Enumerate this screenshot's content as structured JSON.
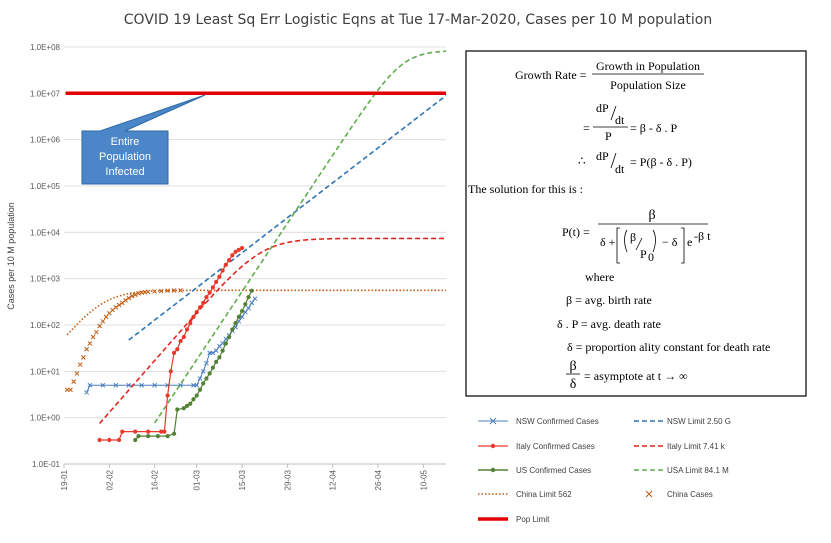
{
  "chart_data": {
    "type": "line",
    "title": "COVID 19 Least Sq Err Logistic Eqns at Tue 17-Mar-2020,  Cases per 10 M population",
    "ylabel": "Cases per 10 M population",
    "xlabel": "",
    "y_scale": "log",
    "ylim": [
      0.1,
      100000000
    ],
    "y_tick_labels": [
      "1.0E-01",
      "1.0E+00",
      "1.0E+01",
      "1.0E+02",
      "1.0E+03",
      "1.0E+04",
      "1.0E+05",
      "1.0E+06",
      "1.0E+07",
      "1.0E+08"
    ],
    "xlim": [
      "19-01",
      "17-05"
    ],
    "x_tick_labels": [
      "19-01",
      "02-02",
      "16-02",
      "01-03",
      "15-03",
      "29-03",
      "12-04",
      "26-04",
      "10-05"
    ],
    "x_tick_days": [
      0,
      14,
      28,
      41,
      55,
      69,
      83,
      97,
      111
    ],
    "x_max_day": 118,
    "annotation": {
      "text": [
        "Entire",
        "Population",
        "Infected"
      ],
      "fill": "#4a86c8",
      "stroke": "#2e6aa6"
    },
    "series": [
      {
        "name": "NSW Confirmed Cases",
        "color": "#4a7fc0",
        "style": "marker-x",
        "lineWidth": 1,
        "points": [
          [
            7,
            3.5
          ],
          [
            8,
            5
          ],
          [
            12,
            5
          ],
          [
            16,
            5
          ],
          [
            20,
            5
          ],
          [
            24,
            5
          ],
          [
            28,
            5
          ],
          [
            32,
            5
          ],
          [
            36,
            5
          ],
          [
            40,
            5
          ],
          [
            41,
            5
          ],
          [
            42,
            7
          ],
          [
            43,
            10
          ],
          [
            44,
            15
          ],
          [
            45,
            25
          ],
          [
            46,
            25
          ],
          [
            47,
            28
          ],
          [
            48,
            35
          ],
          [
            49,
            40
          ],
          [
            50,
            50
          ],
          [
            51,
            60
          ],
          [
            52,
            75
          ],
          [
            53,
            90
          ],
          [
            54,
            120
          ],
          [
            55,
            150
          ],
          [
            56,
            190
          ],
          [
            57,
            230
          ],
          [
            58,
            300
          ],
          [
            59,
            370
          ]
        ]
      },
      {
        "name": "NSW Limit 2.50 G",
        "color": "#2e75b6",
        "style": "dashed",
        "lineWidth": 1.6,
        "logistic": {
          "r": 0.124,
          "t0": 163.4,
          "K": 2500000000.0,
          "from": 20,
          "to": 118
        }
      },
      {
        "name": "Italy Confirmed Cases",
        "color": "#e8392a",
        "style": "marker-dot",
        "lineWidth": 1.2,
        "points": [
          [
            11,
            0.33
          ],
          [
            14,
            0.33
          ],
          [
            17,
            0.33
          ],
          [
            18,
            0.5
          ],
          [
            22,
            0.5
          ],
          [
            26,
            0.5
          ],
          [
            30,
            0.5
          ],
          [
            31,
            0.5
          ],
          [
            32,
            3
          ],
          [
            33,
            10
          ],
          [
            34,
            25
          ],
          [
            35,
            30
          ],
          [
            36,
            45
          ],
          [
            37,
            55
          ],
          [
            38,
            80
          ],
          [
            39,
            110
          ],
          [
            40,
            150
          ],
          [
            41,
            190
          ],
          [
            42,
            240
          ],
          [
            43,
            300
          ],
          [
            44,
            400
          ],
          [
            45,
            500
          ],
          [
            46,
            650
          ],
          [
            47,
            850
          ],
          [
            48,
            1100
          ],
          [
            49,
            1500
          ],
          [
            50,
            2000
          ],
          [
            51,
            2500
          ],
          [
            52,
            3200
          ],
          [
            53,
            3800
          ],
          [
            54,
            4200
          ],
          [
            55,
            4600
          ]
        ]
      },
      {
        "name": "Italy Limit 7.41 k",
        "color": "#e3261b",
        "style": "dashed",
        "lineWidth": 1.6,
        "logistic": {
          "r": 0.184,
          "t0": 61,
          "K": 7410,
          "from": 11,
          "to": 118
        }
      },
      {
        "name": "US Confirmed Cases",
        "color": "#538135",
        "style": "marker-dot",
        "lineWidth": 1.2,
        "points": [
          [
            22,
            0.33
          ],
          [
            23,
            0.4
          ],
          [
            26,
            0.4
          ],
          [
            29,
            0.4
          ],
          [
            32,
            0.4
          ],
          [
            34,
            0.45
          ],
          [
            35,
            1.5
          ],
          [
            37,
            1.6
          ],
          [
            38,
            1.8
          ],
          [
            39,
            2
          ],
          [
            40,
            2.5
          ],
          [
            41,
            3
          ],
          [
            42,
            4
          ],
          [
            43,
            5.5
          ],
          [
            44,
            7
          ],
          [
            45,
            9
          ],
          [
            46,
            12
          ],
          [
            47,
            16
          ],
          [
            48,
            20
          ],
          [
            49,
            28
          ],
          [
            50,
            40
          ],
          [
            51,
            55
          ],
          [
            52,
            80
          ],
          [
            53,
            110
          ],
          [
            54,
            150
          ],
          [
            55,
            200
          ],
          [
            56,
            280
          ],
          [
            57,
            400
          ],
          [
            58,
            550
          ]
        ]
      },
      {
        "name": "USA Limit 84.1 M",
        "color": "#5fad4e",
        "style": "dashed",
        "lineWidth": 1.6,
        "logistic": {
          "r": 0.242,
          "t0": 104.5,
          "K": 84100000,
          "from": 28,
          "to": 118
        }
      },
      {
        "name": "China Limit 562",
        "color": "#c55a11",
        "style": "dotted",
        "lineWidth": 1.6,
        "logistic": {
          "r": 0.2,
          "t0": 11.5,
          "K": 562,
          "from": 1,
          "to": 118
        }
      },
      {
        "name": "China Cases",
        "color": "#c55a11",
        "style": "marker-x-only",
        "lineWidth": 1,
        "points": [
          [
            1,
            4
          ],
          [
            2,
            4
          ],
          [
            3,
            6
          ],
          [
            4,
            9
          ],
          [
            5,
            14
          ],
          [
            6,
            20
          ],
          [
            7,
            30
          ],
          [
            8,
            40
          ],
          [
            9,
            55
          ],
          [
            10,
            70
          ],
          [
            11,
            95
          ],
          [
            12,
            120
          ],
          [
            13,
            150
          ],
          [
            14,
            180
          ],
          [
            15,
            210
          ],
          [
            16,
            240
          ],
          [
            17,
            270
          ],
          [
            18,
            300
          ],
          [
            19,
            340
          ],
          [
            20,
            380
          ],
          [
            21,
            420
          ],
          [
            22,
            450
          ],
          [
            23,
            480
          ],
          [
            24,
            500
          ],
          [
            25,
            510
          ],
          [
            26,
            520
          ],
          [
            28,
            530
          ],
          [
            30,
            540
          ],
          [
            32,
            550
          ],
          [
            34,
            555
          ],
          [
            36,
            560
          ]
        ]
      },
      {
        "name": "Pop Limit",
        "color": "#e30000",
        "style": "solid",
        "lineWidth": 3.5,
        "points": [
          [
            0.5,
            10000000
          ],
          [
            118,
            10000000
          ]
        ]
      }
    ]
  },
  "equation": {
    "growth_rate_label": "Growth  Rate =",
    "growth_num": "Growth  in Population",
    "growth_den": "Population  Size",
    "line2_lhs_num": "dP",
    "line2_lhs_dt": "dt",
    "line2_lhs_den": "P",
    "line2_rhs": "= β  -  δ . P",
    "line3_prefix": "∴",
    "line3_lhs_num": "dP",
    "line3_lhs_dt": "dt",
    "line3_rhs": "=  P(β - δ . P)",
    "solution_text": "The  solution  for this is :",
    "pt_lhs": "P(t) =",
    "pt_num": "β",
    "pt_den_a": "δ +",
    "pt_den_inner_num": "β",
    "pt_den_inner_den": "P",
    "pt_den_inner_den_sub": "0",
    "pt_den_b": "− δ",
    "pt_exp": "e",
    "pt_exp_sup": "-β t",
    "where": "where",
    "def1": "β = avg.  birth rate",
    "def2": "δ . P = avg.  death rate",
    "def3": "δ = proportion ality constant  for death  rate",
    "def4_num": "β",
    "def4_den": "δ",
    "def4_rhs": "= asymptote  at t → ∞"
  }
}
